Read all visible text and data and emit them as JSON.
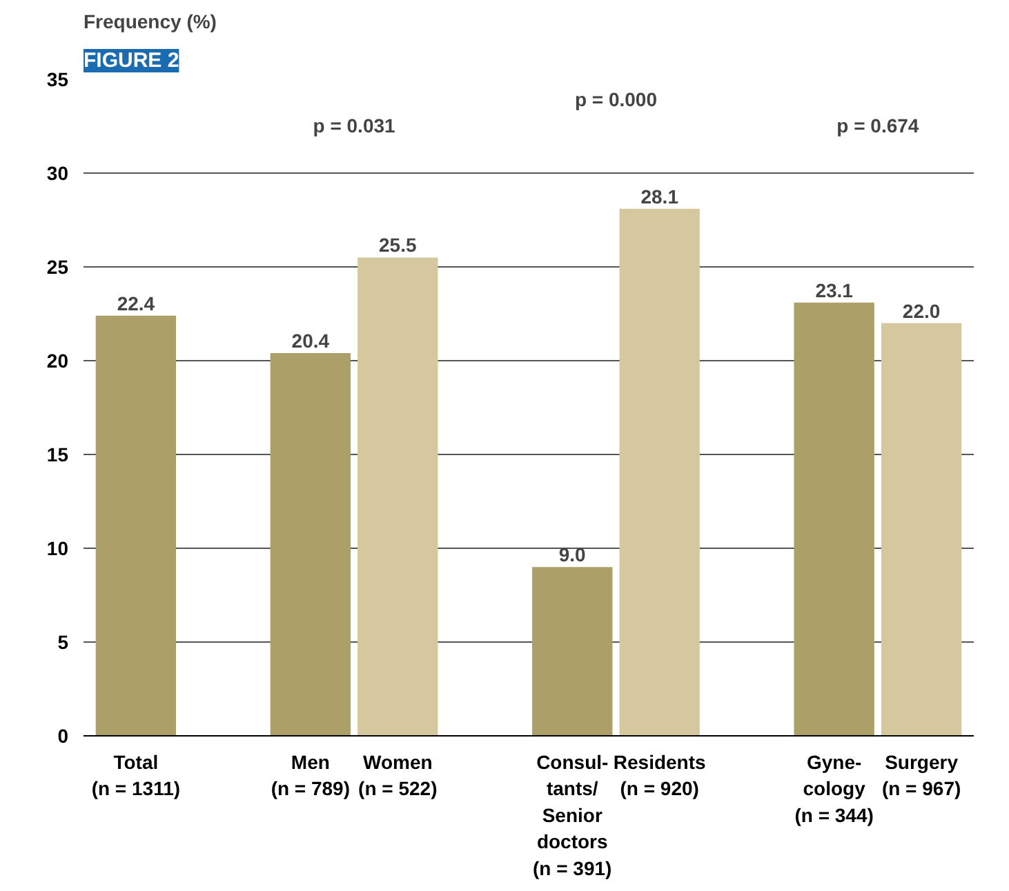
{
  "chart_data": {
    "type": "bar",
    "title": "FIGURE 2",
    "ylabel": "Frequency (%)",
    "categories": [
      "Total\n(n = 1311)",
      null,
      "Men\n(n = 789)",
      "Women\n(n = 522)",
      null,
      "Consul-\ntants/\nSenior\ndoctors\n(n = 391)",
      "Residents\n(n = 920)",
      null,
      "Gyne-\ncology\n(n = 344)",
      "Surgery\n(n = 967)"
    ],
    "values": [
      22.4,
      null,
      20.4,
      25.5,
      null,
      9.0,
      28.1,
      null,
      23.1,
      22.0
    ],
    "value_labels": [
      "22.4",
      null,
      "20.4",
      "25.5",
      null,
      "9.0",
      "28.1",
      null,
      "23.1",
      "22.0"
    ],
    "colors": [
      "#ad9f68",
      null,
      "#ad9f68",
      "#d5c89e",
      null,
      "#ad9f68",
      "#d5c89e",
      null,
      "#ad9f68",
      "#d5c89e"
    ],
    "ylim": [
      0,
      35
    ],
    "yticks": [
      0,
      5,
      10,
      15,
      20,
      25,
      30,
      35
    ],
    "grid": "y",
    "annotations": [
      "p = 0.031",
      "p = 0.000",
      "p = 0.674"
    ]
  }
}
